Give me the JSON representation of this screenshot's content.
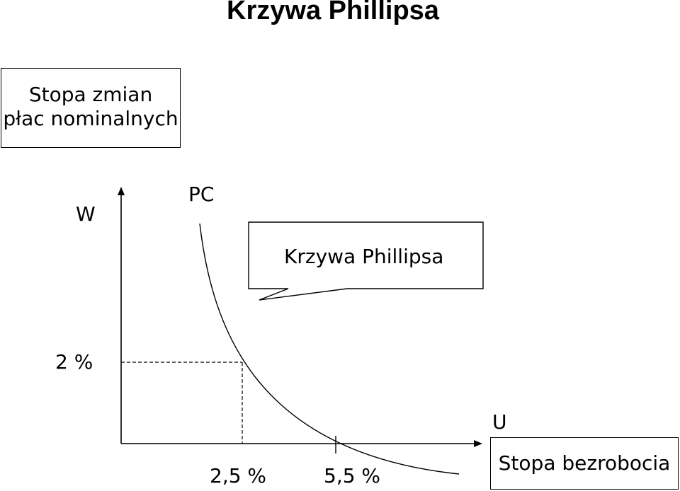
{
  "title": "Krzywa Phillipsa",
  "y_axis_box": {
    "line1": "Stopa zmian",
    "line2": "płac nominalnych"
  },
  "x_axis_box": "Stopa bezrobocia",
  "y_axis_symbol": "W",
  "x_axis_symbol": "U",
  "curve_label": "PC",
  "callout": "Krzywa Phillipsa",
  "chart_data": {
    "type": "line",
    "title": "Krzywa Phillipsa",
    "xlabel": "U — Stopa bezrobocia",
    "ylabel": "W — Stopa zmian płac nominalnych",
    "series": [
      {
        "name": "PC",
        "description": "downward-sloping convex curve"
      }
    ],
    "ticks": [
      {
        "axis": "y",
        "value": 2,
        "label": "2 %"
      },
      {
        "axis": "x",
        "value": 2.5,
        "label": "2,5 %"
      },
      {
        "axis": "x",
        "value": 5.5,
        "label": "5,5 %"
      }
    ],
    "points": [
      {
        "x": 2.5,
        "y": 2,
        "dashed_guides": true
      },
      {
        "x": 5.5,
        "y": 0
      }
    ]
  }
}
